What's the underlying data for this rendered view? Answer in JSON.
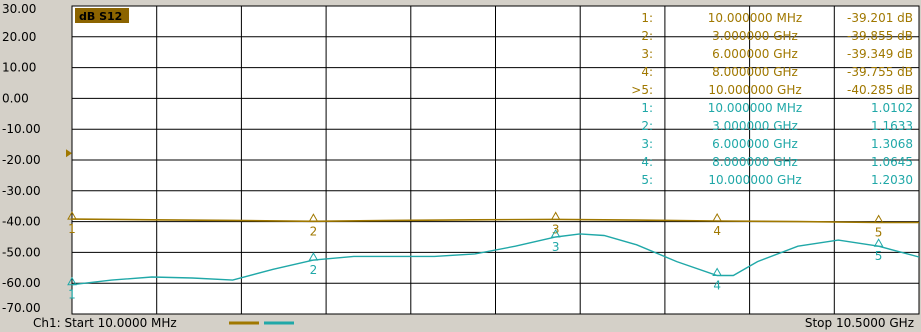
{
  "trace_label": "dB S12",
  "y_axis": {
    "ticks": [
      "30.00",
      "20.00",
      "10.00",
      "0.00",
      "-10.00",
      "-20.00",
      "-30.00",
      "-40.00",
      "-50.00",
      "-60.00",
      "-70.00"
    ],
    "min": -70,
    "max": 30
  },
  "x_axis": {
    "min_ghz": 0.01,
    "max_ghz": 10.5
  },
  "footer": {
    "start": "Ch1: Start  10.0000 MHz",
    "stop": "Stop  10.5000 GHz"
  },
  "markers": {
    "gold": [
      {
        "index": "1:",
        "freq": "10.000000 MHz",
        "value": "-39.201 dB"
      },
      {
        "index": "2:",
        "freq": "3.000000 GHz",
        "value": "-39.855 dB"
      },
      {
        "index": "3:",
        "freq": "6.000000 GHz",
        "value": "-39.349 dB"
      },
      {
        "index": "4:",
        "freq": "8.000000 GHz",
        "value": "-39.755 dB"
      },
      {
        "index": ">5:",
        "freq": "10.000000 GHz",
        "value": "-40.285 dB"
      }
    ],
    "teal": [
      {
        "index": "1:",
        "freq": "10.000000 MHz",
        "value": "1.0102"
      },
      {
        "index": "2:",
        "freq": "3.000000 GHz",
        "value": "1.1633"
      },
      {
        "index": "3:",
        "freq": "6.000000 GHz",
        "value": "1.3068"
      },
      {
        "index": "4:",
        "freq": "8.000000 GHz",
        "value": "1.0645"
      },
      {
        "index": "5:",
        "freq": "10.000000 GHz",
        "value": "1.2030"
      }
    ]
  },
  "colors": {
    "gold": "#a07800",
    "teal": "#20a8a8",
    "label_bg": "#8c6400",
    "grid": "#000000",
    "bg": "#ffffff"
  },
  "chart_data": {
    "type": "line",
    "xlabel": "",
    "ylabel": "",
    "ylim": [
      -70,
      30
    ],
    "xlim_ghz": [
      0.01,
      10.5
    ],
    "grid": true,
    "series": [
      {
        "name": "dB S12",
        "x_ghz": [
          0.01,
          1.0,
          2.0,
          3.0,
          4.0,
          5.0,
          6.0,
          7.0,
          8.0,
          9.0,
          10.0,
          10.5
        ],
        "y_db": [
          -39.2,
          -39.4,
          -39.6,
          -39.9,
          -39.6,
          -39.4,
          -39.3,
          -39.5,
          -39.8,
          -40.0,
          -40.3,
          -40.3
        ]
      },
      {
        "name": "",
        "x_ghz": [
          0.01,
          0.5,
          1.0,
          1.5,
          2.0,
          2.5,
          3.0,
          3.5,
          4.0,
          4.5,
          5.0,
          5.5,
          6.0,
          6.3,
          6.6,
          7.0,
          7.5,
          8.0,
          8.2,
          8.5,
          9.0,
          9.5,
          10.0,
          10.5
        ],
        "y_db": [
          -60.5,
          -59.0,
          -58.0,
          -58.3,
          -59.0,
          -55.5,
          -52.5,
          -51.3,
          -51.3,
          -51.3,
          -50.5,
          -48.0,
          -45.0,
          -44.0,
          -44.5,
          -47.5,
          -53.0,
          -57.5,
          -57.5,
          -53.0,
          -48.0,
          -46.0,
          -48.0,
          -51.5
        ]
      }
    ],
    "markers": [
      {
        "series": "gold",
        "x_ghz": 0.01,
        "label": "1"
      },
      {
        "series": "gold",
        "x_ghz": 3.0,
        "label": "2"
      },
      {
        "series": "gold",
        "x_ghz": 6.0,
        "label": "3"
      },
      {
        "series": "gold",
        "x_ghz": 8.0,
        "label": "4"
      },
      {
        "series": "gold",
        "x_ghz": 10.0,
        "label": "5"
      },
      {
        "series": "teal",
        "x_ghz": 0.01,
        "label": "1"
      },
      {
        "series": "teal",
        "x_ghz": 3.0,
        "label": "2"
      },
      {
        "series": "teal",
        "x_ghz": 6.0,
        "label": "3"
      },
      {
        "series": "teal",
        "x_ghz": 8.0,
        "label": "4"
      },
      {
        "series": "teal",
        "x_ghz": 10.0,
        "label": "5"
      }
    ]
  }
}
